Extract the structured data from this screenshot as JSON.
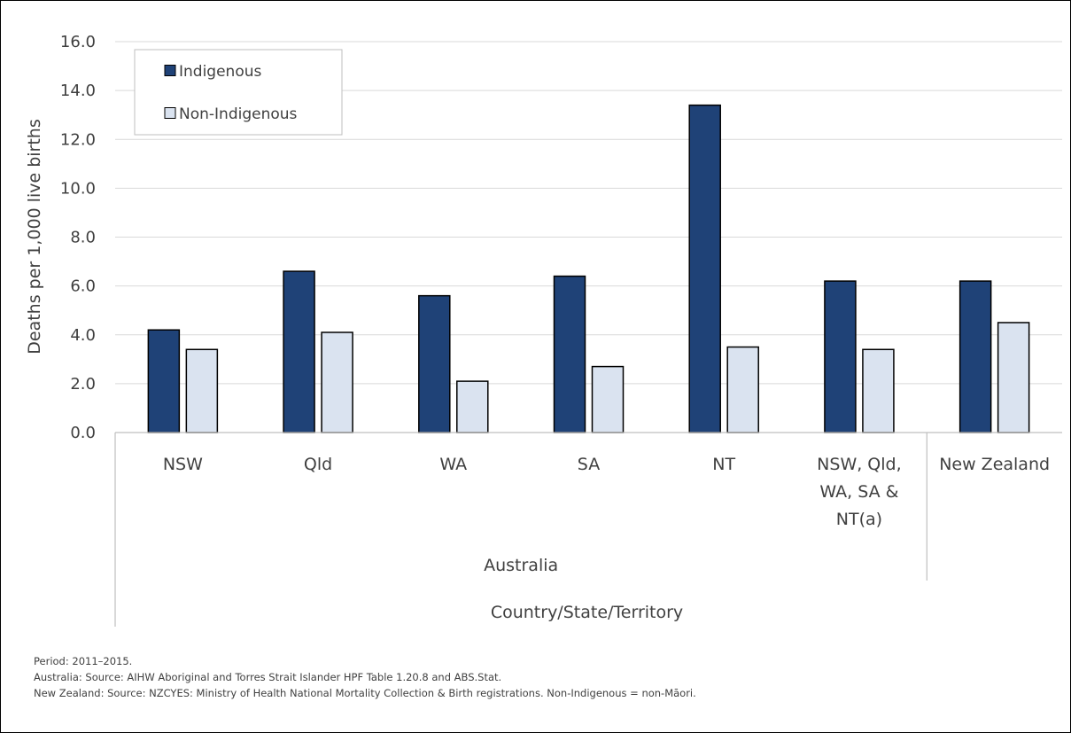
{
  "chart_data": {
    "type": "bar",
    "categories": [
      "NSW",
      "Qld",
      "WA",
      "SA",
      "NT",
      "NSW, Qld, WA, SA & NT(a)",
      "New Zealand"
    ],
    "category_lines": [
      [
        "NSW"
      ],
      [
        "Qld"
      ],
      [
        "WA"
      ],
      [
        "SA"
      ],
      [
        "NT"
      ],
      [
        "NSW, Qld,",
        "WA, SA &",
        "NT(a)"
      ],
      [
        "New Zealand"
      ]
    ],
    "groups": [
      {
        "label": "Australia",
        "categories": [
          "NSW",
          "Qld",
          "WA",
          "SA",
          "NT",
          "NSW, Qld, WA, SA & NT(a)"
        ]
      },
      {
        "label": "",
        "categories": [
          "New Zealand"
        ]
      }
    ],
    "series": [
      {
        "name": "Indigenous",
        "color": "#1f4277",
        "values": [
          4.2,
          6.6,
          5.6,
          6.4,
          13.4,
          6.2,
          6.2
        ]
      },
      {
        "name": "Non-Indigenous",
        "color": "#dae3f0",
        "values": [
          3.4,
          4.1,
          2.1,
          2.7,
          3.5,
          3.4,
          4.5
        ]
      }
    ],
    "ylabel": "Deaths per 1,000 live births",
    "xlabel": "Country/State/Territory",
    "ylim": [
      0,
      16
    ],
    "yticks": [
      "0.0",
      "2.0",
      "4.0",
      "6.0",
      "8.0",
      "10.0",
      "12.0",
      "14.0",
      "16.0"
    ],
    "grid": true,
    "legend": "top-left"
  },
  "notes": [
    "Period: 2011–2015.",
    "Australia: Source: AIHW Aboriginal and Torres Strait Islander HPF Table 1.20.8 and ABS.Stat.",
    "New Zealand:  Source: NZCYES: Ministry of Health National Mortality Collection & Birth registrations. Non-Indigenous = non-Māori."
  ]
}
